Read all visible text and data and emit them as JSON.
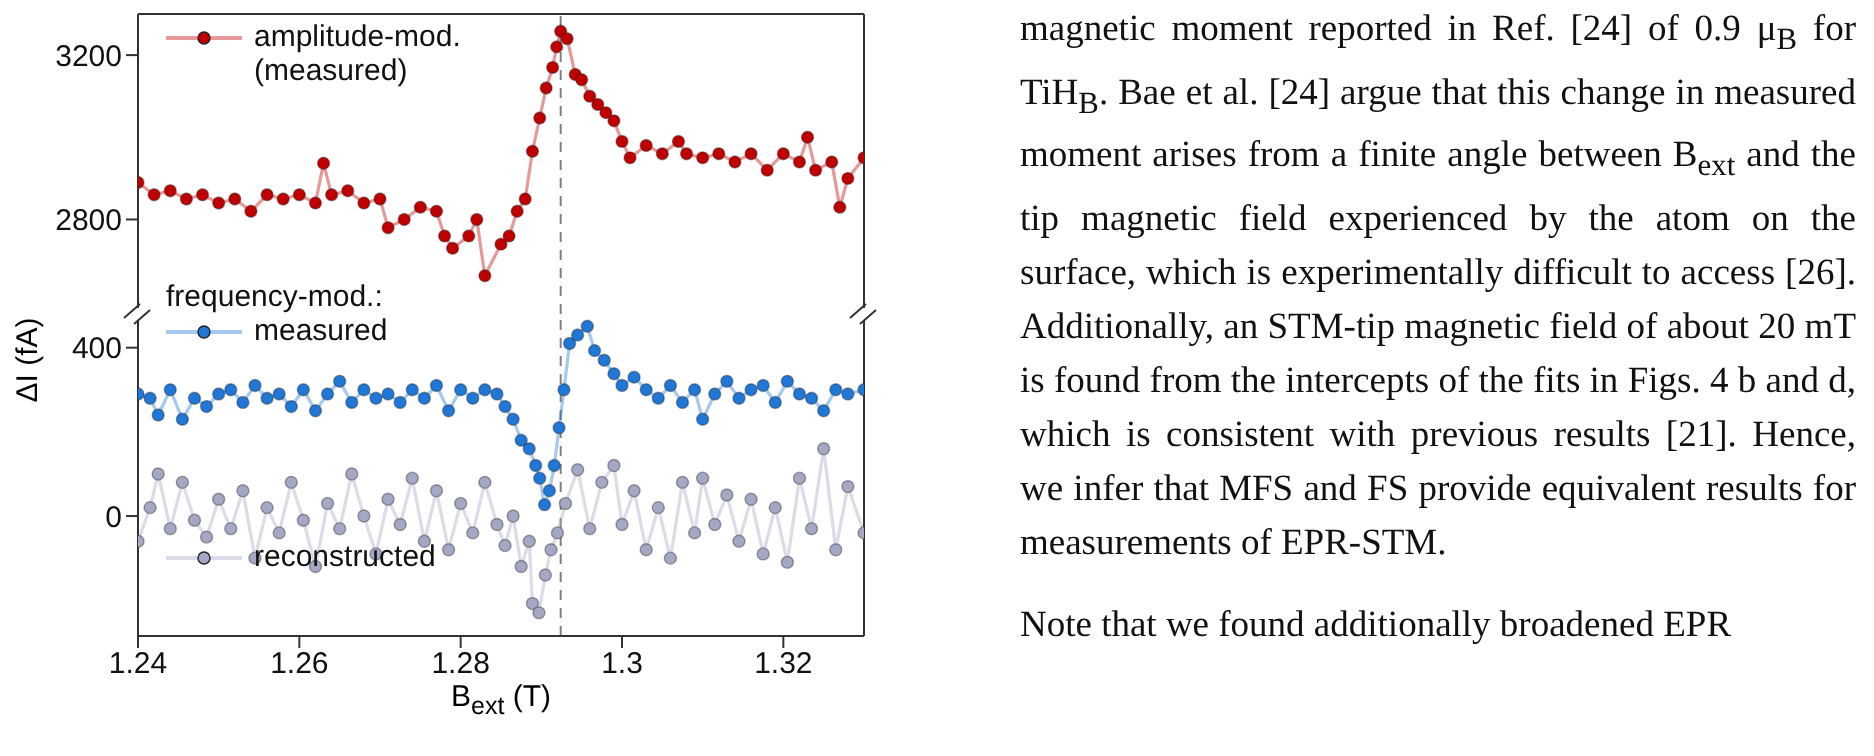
{
  "chart_data": [
    {
      "type": "line",
      "ylabel": "ΔI (fA)",
      "xlim": [
        1.24,
        1.33
      ],
      "tick_labels": "y",
      "ylim": [
        2570,
        3300
      ],
      "yticks": [
        2800,
        3200
      ],
      "marker": "circle",
      "legend": "top left",
      "line_style": "solid",
      "ref_lines": [
        {
          "axis": "x",
          "value": 1.2924,
          "color": "#808080",
          "line_style": "dashed"
        }
      ],
      "annotations": [
        "magnetic moment reported in Ref. [24] of 0.9 μ$_{B}$ for TiH$_{B}$. Bae et al. [24] argue that this change in measured moment arises from a finite angle between B$_{ext}$ and the tip magnetic field experienced by the atom on the surface, which is experimentally difficult to access [26]. Additionally, an STM-tip magnetic field of about 20 mT is found from the intercepts of the fits in Figs. 4 b and d, which is consistent with previous results [21]. Hence, we infer that MFS and FS provide equivalent results for measurements of EPR-STM.",
        "Note that we found additionally broadened EPR"
      ],
      "series": [
        {
          "name": "amplitude-mod.\n(measured)",
          "color": "#c00000",
          "x": [
            1.24,
            1.242,
            1.244,
            1.246,
            1.248,
            1.25,
            1.252,
            1.254,
            1.256,
            1.258,
            1.26,
            1.262,
            1.263,
            1.264,
            1.266,
            1.268,
            1.27,
            1.271,
            1.273,
            1.275,
            1.277,
            1.278,
            1.279,
            1.281,
            1.282,
            1.283,
            1.285,
            1.286,
            1.287,
            1.288,
            1.2889,
            1.2898,
            1.2906,
            1.2914,
            1.2919,
            1.2924,
            1.2932,
            1.2942,
            1.295,
            1.296,
            1.297,
            1.298,
            1.299,
            1.3,
            1.301,
            1.303,
            1.305,
            1.307,
            1.308,
            1.31,
            1.312,
            1.314,
            1.316,
            1.318,
            1.32,
            1.322,
            1.323,
            1.324,
            1.326,
            1.327,
            1.328,
            1.33
          ],
          "values": [
            2890,
            2860,
            2870,
            2850,
            2860,
            2840,
            2850,
            2820,
            2860,
            2850,
            2860,
            2840,
            2937,
            2860,
            2870,
            2840,
            2850,
            2780,
            2800,
            2830,
            2820,
            2760,
            2730,
            2760,
            2800,
            2663,
            2740,
            2760,
            2820,
            2850,
            2966,
            3047,
            3120,
            3170,
            3220,
            3258,
            3240,
            3153,
            3140,
            3100,
            3080,
            3060,
            3040,
            2990,
            2950,
            2980,
            2960,
            2990,
            2960,
            2950,
            2960,
            2940,
            2960,
            2920,
            2960,
            2940,
            3000,
            2920,
            2940,
            2830,
            2900,
            2950
          ]
        }
      ]
    },
    {
      "type": "line",
      "legend_title": "frequency-mod.:",
      "xlabel": "B$_{ext}$ (T)",
      "xlim": [
        1.24,
        1.33
      ],
      "xticks": [
        1.24,
        1.26,
        1.28,
        1.3,
        1.32
      ],
      "ylim": [
        -285,
        480
      ],
      "yticks": [
        0,
        400
      ],
      "marker": "circle",
      "legend": "left",
      "line_style": "solid",
      "ref_lines": [
        {
          "axis": "x",
          "value": 1.2924,
          "color": "#808080",
          "line_style": "dashed"
        }
      ],
      "series": [
        {
          "name": "measured",
          "color": "#1f78d8",
          "x": [
            1.24,
            1.2415,
            1.2425,
            1.244,
            1.2455,
            1.247,
            1.2485,
            1.25,
            1.2515,
            1.253,
            1.2545,
            1.256,
            1.2575,
            1.259,
            1.2605,
            1.262,
            1.2635,
            1.265,
            1.2665,
            1.268,
            1.2695,
            1.271,
            1.2725,
            1.274,
            1.2755,
            1.277,
            1.2785,
            1.28,
            1.2815,
            1.283,
            1.2845,
            1.2855,
            1.2865,
            1.2875,
            1.2885,
            1.2893,
            1.2898,
            1.2904,
            1.291,
            1.2916,
            1.2922,
            1.2928,
            1.2935,
            1.2945,
            1.2957,
            1.2966,
            1.2978,
            1.299,
            1.3,
            1.3015,
            1.303,
            1.3045,
            1.306,
            1.3075,
            1.309,
            1.31,
            1.3115,
            1.313,
            1.3145,
            1.316,
            1.3175,
            1.319,
            1.3205,
            1.322,
            1.3235,
            1.325,
            1.3265,
            1.328,
            1.33
          ],
          "values": [
            290,
            280,
            240,
            300,
            230,
            280,
            260,
            290,
            300,
            270,
            310,
            280,
            290,
            260,
            300,
            250,
            290,
            320,
            270,
            300,
            280,
            290,
            270,
            300,
            280,
            310,
            250,
            300,
            280,
            300,
            290,
            260,
            230,
            180,
            160,
            120,
            90,
            27,
            60,
            120,
            210,
            300,
            410,
            430,
            451,
            393,
            370,
            338,
            310,
            330,
            300,
            280,
            310,
            270,
            300,
            230,
            290,
            320,
            280,
            300,
            310,
            270,
            320,
            290,
            280,
            250,
            300,
            290,
            300
          ]
        },
        {
          "name": "reconstructed",
          "color": "#a4a8c4",
          "x": [
            1.24,
            1.2415,
            1.2425,
            1.244,
            1.2455,
            1.247,
            1.2485,
            1.25,
            1.2515,
            1.253,
            1.2545,
            1.256,
            1.2575,
            1.259,
            1.2605,
            1.262,
            1.2635,
            1.265,
            1.2665,
            1.268,
            1.2695,
            1.271,
            1.2725,
            1.274,
            1.2755,
            1.277,
            1.2785,
            1.28,
            1.2815,
            1.283,
            1.2845,
            1.2855,
            1.2865,
            1.2875,
            1.2885,
            1.2889,
            1.2897,
            1.2905,
            1.2912,
            1.292,
            1.293,
            1.2945,
            1.296,
            1.2975,
            1.299,
            1.3,
            1.3015,
            1.303,
            1.3045,
            1.306,
            1.3075,
            1.309,
            1.31,
            1.3115,
            1.313,
            1.3145,
            1.316,
            1.3175,
            1.319,
            1.3205,
            1.322,
            1.3235,
            1.325,
            1.3265,
            1.328,
            1.33
          ],
          "values": [
            -60,
            20,
            100,
            -30,
            80,
            -10,
            -50,
            40,
            -30,
            60,
            -100,
            20,
            -40,
            80,
            -10,
            -120,
            30,
            -30,
            100,
            0,
            -90,
            40,
            -20,
            90,
            -60,
            60,
            -80,
            30,
            -40,
            80,
            -20,
            -70,
            0,
            -120,
            -60,
            -208,
            -230,
            -140,
            -80,
            -40,
            30,
            110,
            -30,
            80,
            120,
            -20,
            60,
            -80,
            20,
            -100,
            80,
            -40,
            90,
            -20,
            50,
            -60,
            40,
            -90,
            20,
            -110,
            90,
            -30,
            160,
            -80,
            70,
            -40
          ]
        }
      ]
    }
  ]
}
